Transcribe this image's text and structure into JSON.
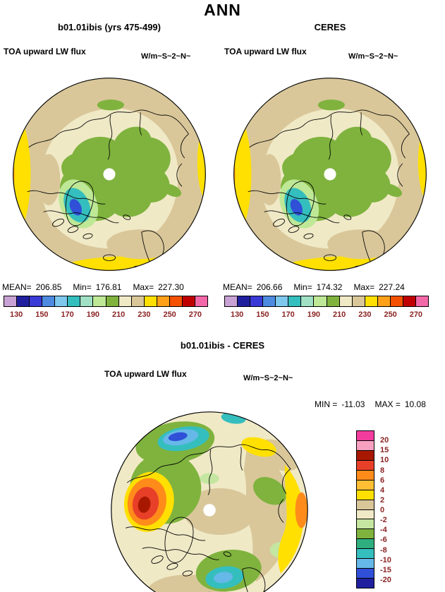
{
  "title": "ANN",
  "panels": [
    {
      "title": "b01.01ibis (yrs 475-499)",
      "variable": "TOA upward LW flux",
      "units": "W/m~S~2~N~",
      "stats": {
        "mean_label": "MEAN=",
        "mean": "206.85",
        "min_label": "Min=",
        "min": "176.81",
        "max_label": "Max=",
        "max": "227.30"
      }
    },
    {
      "title": "CERES",
      "variable": "TOA upward LW flux",
      "units": "W/m~S~2~N~",
      "stats": {
        "mean_label": "MEAN=",
        "mean": "206.66",
        "min_label": "Min=",
        "min": "174.32",
        "max_label": "Max=",
        "max": "227.24"
      }
    }
  ],
  "diff": {
    "title": "b01.01ibis - CERES",
    "variable": "TOA upward LW flux",
    "units": "W/m~S~2~N~",
    "minmax": {
      "min_label": "MIN =",
      "min": "-11.03",
      "max_label": "MAX =",
      "max": "10.08"
    }
  },
  "colorbar_top": {
    "colors": [
      "#C8A2D4",
      "#20209E",
      "#3A3AD6",
      "#4D8AE0",
      "#7EC8EE",
      "#35BEBE",
      "#A0E0C4",
      "#BEE896",
      "#7FB33E",
      "#F0E9C6",
      "#D9C79A",
      "#FFE000",
      "#FFA019",
      "#F55000",
      "#C00000",
      "#F268A8"
    ],
    "ticks": [
      "130",
      "150",
      "170",
      "190",
      "210",
      "230",
      "250",
      "270"
    ]
  },
  "colorbar_diff": {
    "colors": [
      "#F23C9E",
      "#F8A0C0",
      "#A81800",
      "#E84028",
      "#FF8C1A",
      "#FFBE33",
      "#FFE000",
      "#D9C79A",
      "#F0E9C6",
      "#C4E6A0",
      "#7FB33E",
      "#2FAF7F",
      "#35BEBE",
      "#66B8E8",
      "#3050D8",
      "#20209E"
    ],
    "ticks": [
      "20",
      "15",
      "10",
      "8",
      "6",
      "4",
      "2",
      "0",
      "-2",
      "-4",
      "-6",
      "-8",
      "-10",
      "-15",
      "-20"
    ]
  },
  "chart_data": [
    {
      "type": "heatmap",
      "subtype": "polar-stereographic-map-NH",
      "season": "ANN",
      "title": "b01.01ibis (yrs 475-499)",
      "variable": "TOA upward LW flux",
      "units": "W/m~S~2~N~",
      "stats": {
        "mean": 206.85,
        "min": 176.81,
        "max": 227.3
      },
      "contour_levels": [
        130,
        140,
        150,
        160,
        170,
        180,
        190,
        200,
        210,
        220,
        230,
        240,
        250,
        260,
        270
      ],
      "labeled_ticks": [
        130,
        150,
        170,
        190,
        210,
        230,
        250,
        270
      ],
      "legend_position": "below"
    },
    {
      "type": "heatmap",
      "subtype": "polar-stereographic-map-NH",
      "season": "ANN",
      "title": "CERES",
      "variable": "TOA upward LW flux",
      "units": "W/m~S~2~N~",
      "stats": {
        "mean": 206.66,
        "min": 174.32,
        "max": 227.24
      },
      "contour_levels": [
        130,
        140,
        150,
        160,
        170,
        180,
        190,
        200,
        210,
        220,
        230,
        240,
        250,
        260,
        270
      ],
      "labeled_ticks": [
        130,
        150,
        170,
        190,
        210,
        230,
        250,
        270
      ],
      "legend_position": "below"
    },
    {
      "type": "heatmap",
      "subtype": "polar-stereographic-map-NH-difference",
      "season": "ANN",
      "title": "b01.01ibis - CERES",
      "variable": "TOA upward LW flux",
      "units": "W/m~S~2~N~",
      "stats": {
        "min": -11.03,
        "max": 10.08
      },
      "contour_levels": [
        20,
        15,
        10,
        8,
        6,
        4,
        2,
        0,
        -2,
        -4,
        -6,
        -8,
        -10,
        -15,
        -20
      ],
      "legend_position": "right"
    }
  ]
}
